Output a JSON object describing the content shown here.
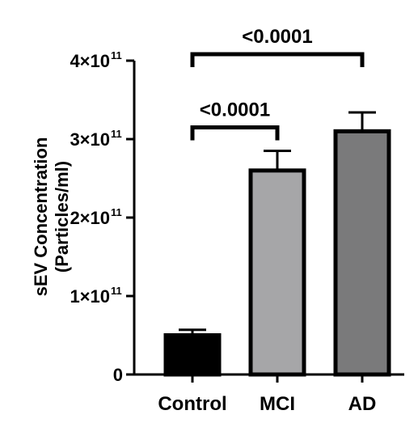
{
  "chart_data": {
    "type": "bar",
    "title": "",
    "xlabel": "",
    "ylabel_line1": "sEV Concentration",
    "ylabel_line2": "(Particles/ml)",
    "categories": [
      "Control",
      "MCI",
      "AD"
    ],
    "values": [
      50000000000.0,
      260000000000.0,
      310000000000.0
    ],
    "errors": [
      7000000000.0,
      25000000000.0,
      24000000000.0
    ],
    "ylim": [
      0,
      400000000000.0
    ],
    "bar_colors": [
      "#000000",
      "#a6a6a8",
      "#7a7a7b"
    ],
    "yticks": [
      {
        "value": 0,
        "base": "0",
        "exp": ""
      },
      {
        "value": 100000000000.0,
        "base": "1×10",
        "exp": "11"
      },
      {
        "value": 200000000000.0,
        "base": "2×10",
        "exp": "11"
      },
      {
        "value": 300000000000.0,
        "base": "3×10",
        "exp": "11"
      },
      {
        "value": 400000000000.0,
        "base": "4×10",
        "exp": "11"
      }
    ],
    "significance": [
      {
        "from": "Control",
        "to": "MCI",
        "label": "<0.0001",
        "level": 315000000000.0
      },
      {
        "from": "Control",
        "to": "AD",
        "label": "<0.0001",
        "level": 400000000000.0
      }
    ],
    "grid": false,
    "legend": "none"
  }
}
